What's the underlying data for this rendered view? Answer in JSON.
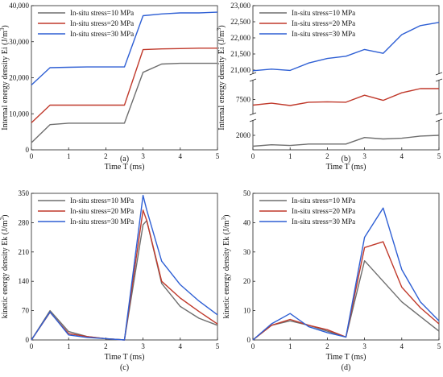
{
  "series_names": [
    "In-situ stress=10 MPa",
    "In-situ stress=20 MPa",
    "In-situ stress=30 MPa"
  ],
  "series_colors": [
    "#6e6e6e",
    "#c0392b",
    "#2e5fd4"
  ],
  "chart_data": [
    {
      "id": "a",
      "type": "line",
      "caption": "(a)",
      "xlabel": "Time T (ms)",
      "ylabel": "Internal energy density Ei (J/m³)",
      "xlim": [
        0,
        5
      ],
      "ylim": [
        0,
        40000
      ],
      "xticks": [
        0,
        1,
        2,
        3,
        4,
        5
      ],
      "yticks": [
        0,
        10000,
        20000,
        30000,
        40000
      ],
      "ytick_labels": [
        "0",
        "10,000",
        "20,000",
        "30,000",
        "40,000"
      ],
      "legend": "top-left",
      "x": [
        0,
        0.5,
        1,
        1.5,
        2,
        2.5,
        3,
        3.5,
        4,
        4.5,
        5
      ],
      "series": [
        {
          "name": "In-situ stress=10 MPa",
          "values": [
            2000,
            7000,
            7400,
            7400,
            7400,
            7400,
            21500,
            23800,
            24000,
            24000,
            24000
          ]
        },
        {
          "name": "In-situ stress=20 MPa",
          "values": [
            7500,
            12400,
            12400,
            12400,
            12400,
            12400,
            27800,
            28000,
            28100,
            28200,
            28200
          ]
        },
        {
          "name": "In-situ stress=30 MPa",
          "values": [
            18000,
            22800,
            22900,
            23000,
            23000,
            23000,
            37200,
            37700,
            38000,
            38000,
            38200
          ]
        }
      ]
    },
    {
      "id": "b",
      "type": "line",
      "caption": "(b)",
      "xlabel": "Time T (ms)",
      "ylabel": "Internal energy density Ei (J/m³)",
      "xlim": [
        0,
        5
      ],
      "broken_axis": true,
      "segments": [
        {
          "ylim": [
            1800,
            2200
          ],
          "yticks": [
            2000
          ],
          "ytick_labels": [
            "2000"
          ]
        },
        {
          "ylim": [
            7200,
            7900
          ],
          "yticks": [
            7500
          ],
          "ytick_labels": [
            "7500"
          ]
        },
        {
          "ylim": [
            20900,
            23000
          ],
          "yticks": [
            21000,
            21500,
            22000,
            22500,
            23000
          ],
          "ytick_labels": [
            "21,000",
            "21,500",
            "22,000",
            "22,500",
            "23,000"
          ]
        }
      ],
      "xticks": [
        0,
        1,
        2,
        3,
        4,
        5
      ],
      "legend": "top-left",
      "x": [
        0,
        0.5,
        1,
        1.5,
        2,
        2.5,
        3,
        3.5,
        4,
        4.5,
        5
      ],
      "series": [
        {
          "name": "In-situ stress=10 MPa",
          "values": [
            1850,
            1870,
            1860,
            1880,
            1880,
            1880,
            1970,
            1950,
            1960,
            1990,
            2000
          ]
        },
        {
          "name": "In-situ stress=20 MPa",
          "values": [
            7380,
            7420,
            7370,
            7440,
            7450,
            7440,
            7590,
            7480,
            7640,
            7730,
            7730
          ]
        },
        {
          "name": "In-situ stress=30 MPa",
          "values": [
            20980,
            21030,
            20990,
            21220,
            21360,
            21430,
            21640,
            21520,
            22100,
            22380,
            22480
          ]
        }
      ]
    },
    {
      "id": "c",
      "type": "line",
      "caption": "(c)",
      "xlabel": "Time T (ms)",
      "ylabel": "kinetic energy density Ek (J/m³)",
      "xlim": [
        0,
        5
      ],
      "ylim": [
        0,
        350
      ],
      "xticks": [
        0,
        1,
        2,
        3,
        4,
        5
      ],
      "yticks": [
        0,
        70,
        140,
        210,
        280,
        350
      ],
      "ytick_labels": [
        "0",
        "70",
        "140",
        "210",
        "280",
        "350"
      ],
      "legend": "top-left",
      "x": [
        0,
        0.5,
        1,
        1.5,
        2,
        2.5,
        3,
        3.1,
        3.5,
        4,
        4.5,
        5
      ],
      "series": [
        {
          "name": "In-situ stress=10 MPa",
          "values": [
            0,
            70,
            20,
            8,
            3,
            0,
            275,
            285,
            135,
            80,
            52,
            35
          ]
        },
        {
          "name": "In-situ stress=20 MPa",
          "values": [
            0,
            66,
            15,
            8,
            3,
            0,
            310,
            285,
            140,
            100,
            68,
            38
          ]
        },
        {
          "name": "In-situ stress=30 MPa",
          "values": [
            0,
            67,
            12,
            6,
            3,
            0,
            345,
            310,
            188,
            132,
            93,
            60
          ]
        }
      ]
    },
    {
      "id": "d",
      "type": "line",
      "caption": "(d)",
      "xlabel": "Time T (ms)",
      "ylabel": "kinetic energy density Ek (J/m³)",
      "xlim": [
        0,
        5
      ],
      "ylim": [
        0,
        50
      ],
      "xticks": [
        0,
        1,
        2,
        3,
        4,
        5
      ],
      "yticks": [
        0,
        10,
        20,
        30,
        40,
        50
      ],
      "ytick_labels": [
        "0",
        "10",
        "20",
        "30",
        "40",
        "50"
      ],
      "legend": "top-left",
      "x": [
        0,
        0.5,
        1,
        1.5,
        2,
        2.5,
        3,
        3.5,
        4,
        4.5,
        5
      ],
      "series": [
        {
          "name": "In-situ stress=10 MPa",
          "values": [
            0,
            5,
            6.5,
            5,
            3,
            1,
            27,
            20,
            13,
            8,
            3
          ]
        },
        {
          "name": "In-situ stress=20 MPa",
          "values": [
            0,
            5,
            7,
            5,
            3.5,
            1,
            31.5,
            33.5,
            18,
            11,
            5.5
          ]
        },
        {
          "name": "In-situ stress=30 MPa",
          "values": [
            0,
            5.5,
            9,
            4.5,
            2.5,
            1,
            35,
            45,
            24,
            13,
            6.5
          ]
        }
      ]
    }
  ]
}
